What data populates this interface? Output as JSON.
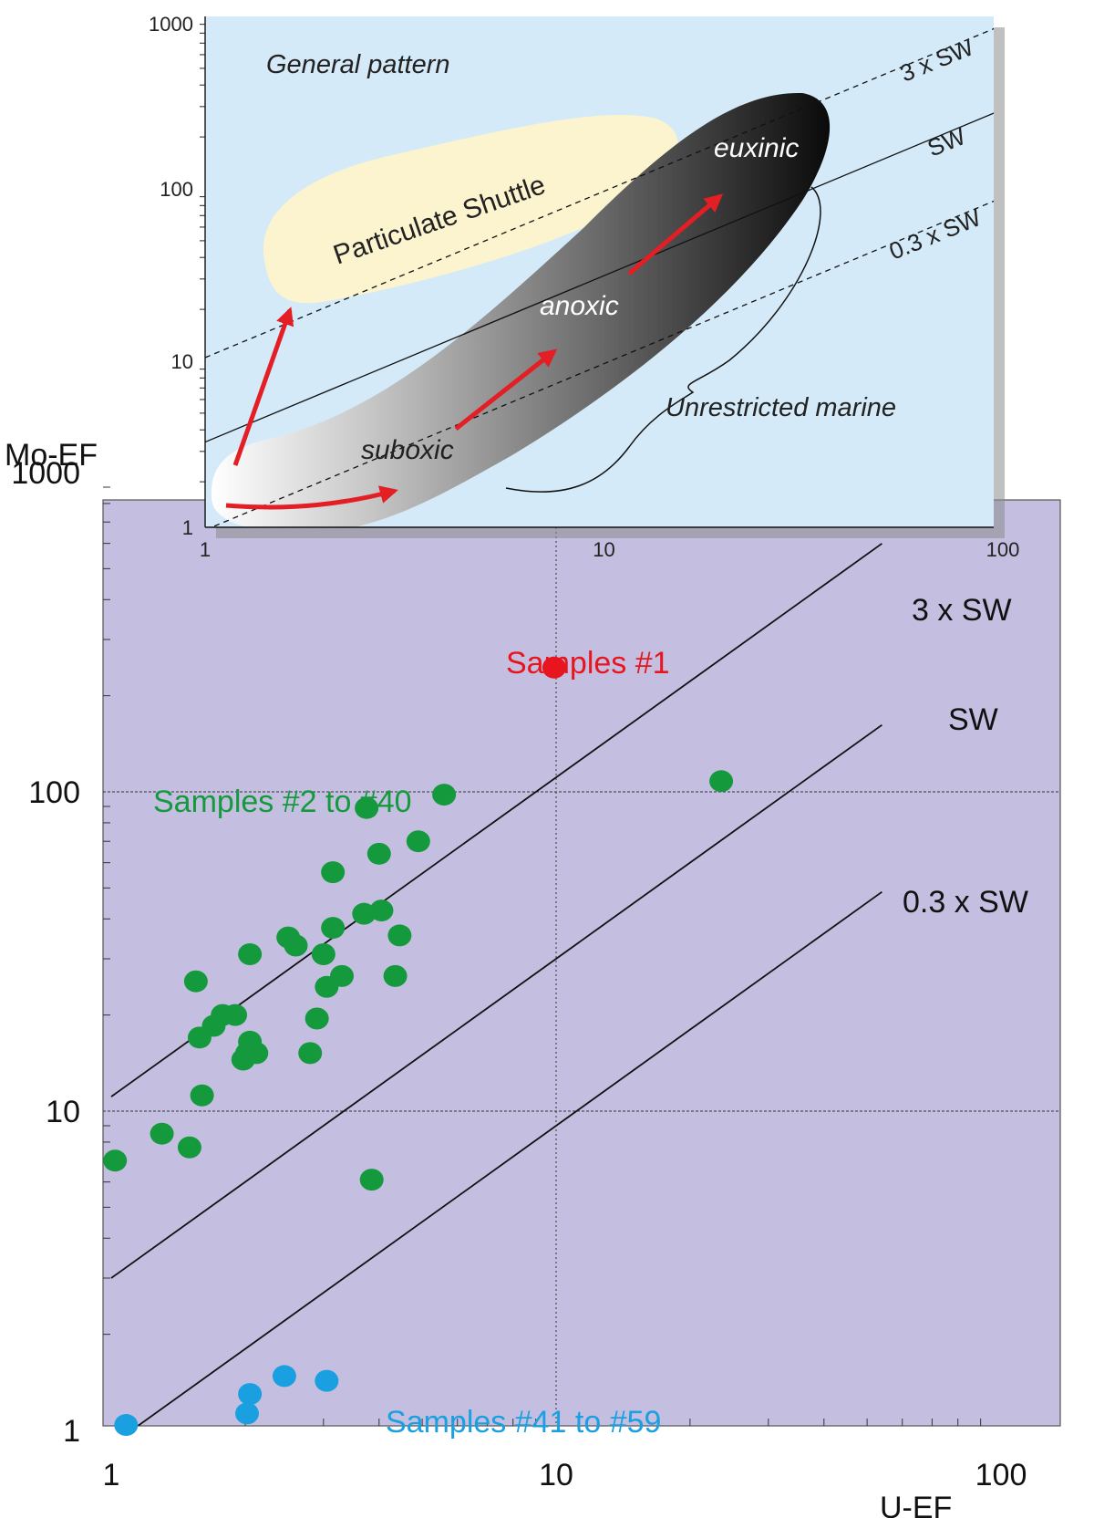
{
  "chart_data": [
    {
      "type": "scatter",
      "panel": "main",
      "xlabel": "U-EF",
      "ylabel": "Mo-EF",
      "xscale": "log",
      "yscale": "log",
      "xlim": [
        1,
        100
      ],
      "ylim": [
        1,
        1000
      ],
      "x_ticks": [
        "1",
        "10",
        "100"
      ],
      "y_ticks": [
        "1",
        "10",
        "100",
        "1000"
      ],
      "grid": "dotted lines at x=10, y=10, y=100",
      "background": "#c4bfe0",
      "reference_lines": [
        {
          "label": "3 x SW",
          "ratio": 11.1,
          "x_range": [
            1,
            54
          ]
        },
        {
          "label": "SW",
          "ratio": 3.0,
          "x_range": [
            1,
            54
          ]
        },
        {
          "label": "0.3 x SW",
          "ratio": 0.9,
          "x_range": [
            1.05,
            54
          ]
        }
      ],
      "series": [
        {
          "name": "Samples #1",
          "color": "#e8141e",
          "points": [
            [
              9.9,
              245
            ]
          ]
        },
        {
          "name": "Samples #2 to #40",
          "color": "#149a3c",
          "points": [
            [
              1.02,
              7.0
            ],
            [
              1.3,
              8.5
            ],
            [
              1.5,
              7.7
            ],
            [
              1.55,
              25.5
            ],
            [
              1.58,
              17.0
            ],
            [
              1.6,
              11.2
            ],
            [
              1.7,
              18.5
            ],
            [
              1.78,
              20.0
            ],
            [
              1.9,
              20.0
            ],
            [
              1.98,
              14.5
            ],
            [
              2.02,
              15.2
            ],
            [
              2.05,
              16.5
            ],
            [
              2.05,
              31.0
            ],
            [
              2.12,
              15.2
            ],
            [
              2.5,
              35.0
            ],
            [
              2.6,
              33.0
            ],
            [
              2.8,
              15.2
            ],
            [
              2.9,
              19.5
            ],
            [
              3.0,
              31.0
            ],
            [
              3.05,
              24.5
            ],
            [
              3.15,
              37.5
            ],
            [
              3.15,
              56.0
            ],
            [
              3.3,
              26.5
            ],
            [
              3.7,
              41.5
            ],
            [
              3.75,
              89.0
            ],
            [
              3.85,
              6.1
            ],
            [
              4.0,
              64.0
            ],
            [
              4.05,
              42.5
            ],
            [
              4.35,
              26.5
            ],
            [
              4.45,
              35.5
            ],
            [
              4.9,
              70.0
            ],
            [
              5.6,
              98.0
            ],
            [
              23.5,
              108.0
            ]
          ]
        },
        {
          "name": "Samples #41 to #59",
          "color": "#1aa0e0",
          "points": [
            [
              1.08,
              1.04
            ],
            [
              2.02,
              1.13
            ],
            [
              2.05,
              1.3
            ],
            [
              2.45,
              1.48
            ],
            [
              3.05,
              1.43
            ]
          ]
        }
      ],
      "annotations": [
        {
          "text": "Samples #1",
          "color": "#e8141e"
        },
        {
          "text": "Samples #2 to #40",
          "color": "#149a3c"
        },
        {
          "text": "Samples #41 to #59",
          "color": "#1aa0e0"
        }
      ]
    },
    {
      "type": "diagram",
      "panel": "inset",
      "title": "General pattern",
      "xscale": "log",
      "yscale": "log",
      "xlim": [
        1,
        100
      ],
      "ylim": [
        1,
        1000
      ],
      "x_ticks": [
        "1",
        "10",
        "100"
      ],
      "y_ticks": [
        "1",
        "10",
        "100",
        "1000"
      ],
      "background": "#d4eaf8",
      "reference_lines": [
        "3 x SW",
        "SW",
        "0.3 x SW"
      ],
      "regions": [
        "Particulate Shuttle",
        "suboxic",
        "anoxic",
        "euxinic",
        "Unrestricted marine"
      ],
      "arrow_color": "#e31e24"
    }
  ]
}
